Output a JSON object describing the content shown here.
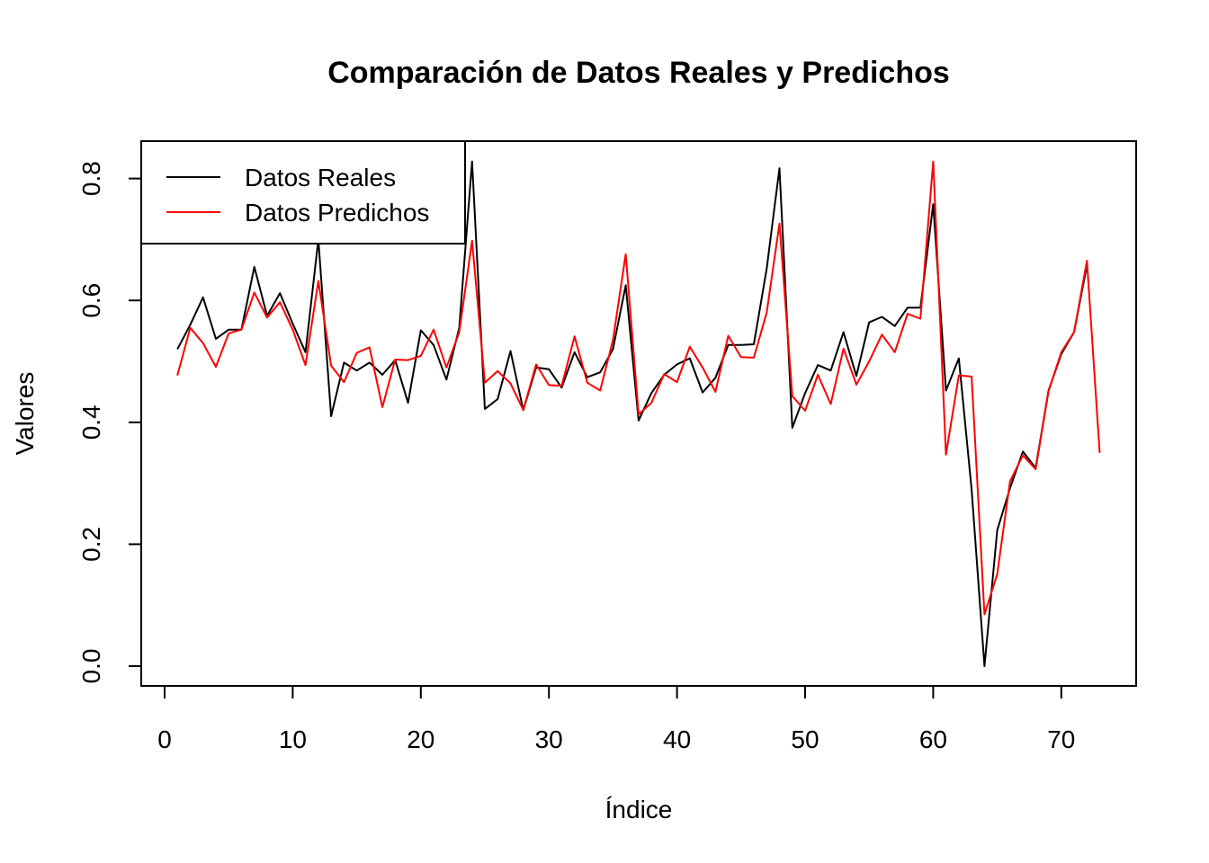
{
  "chart_data": {
    "type": "line",
    "title": "Comparación de Datos Reales y Predichos",
    "xlabel": "Índice",
    "ylabel": "Valores",
    "xlim": [
      0,
      75
    ],
    "ylim": [
      0.0,
      0.83
    ],
    "x_ticks": [
      0,
      10,
      20,
      30,
      40,
      50,
      60,
      70
    ],
    "x_tick_labels": [
      "0",
      "10",
      "20",
      "30",
      "40",
      "50",
      "60",
      "70"
    ],
    "y_ticks": [
      0.0,
      0.2,
      0.4,
      0.6,
      0.8
    ],
    "y_tick_labels": [
      "0.0",
      "0.2",
      "0.4",
      "0.6",
      "0.8"
    ],
    "grid": false,
    "legend_position": "top-left",
    "series": [
      {
        "name": "Datos Reales",
        "color": "#000000",
        "x": [
          1,
          2,
          3,
          4,
          5,
          6,
          7,
          8,
          9,
          10,
          11,
          12,
          13,
          14,
          15,
          16,
          17,
          18,
          19,
          20,
          21,
          22,
          23,
          24,
          25,
          26,
          27,
          28,
          29,
          30,
          31,
          32,
          33,
          34,
          35,
          36,
          37,
          38,
          39,
          40,
          41,
          42,
          43,
          44,
          45,
          46,
          47,
          48,
          49,
          50,
          51,
          52,
          53,
          54,
          55,
          56,
          57,
          58,
          59,
          60,
          61,
          62,
          63,
          64,
          65,
          66,
          67,
          68,
          69,
          70,
          71,
          72
        ],
        "y": [
          0.52,
          0.56,
          0.605,
          0.537,
          0.552,
          0.552,
          0.655,
          0.575,
          0.612,
          0.562,
          0.515,
          0.7,
          0.41,
          0.498,
          0.485,
          0.498,
          0.478,
          0.502,
          0.432,
          0.551,
          0.527,
          0.47,
          0.555,
          0.828,
          0.422,
          0.438,
          0.517,
          0.42,
          0.49,
          0.487,
          0.457,
          0.515,
          0.474,
          0.482,
          0.52,
          0.625,
          0.403,
          0.448,
          0.478,
          0.495,
          0.505,
          0.449,
          0.473,
          0.527,
          0.527,
          0.528,
          0.652,
          0.817,
          0.391,
          0.448,
          0.494,
          0.485,
          0.548,
          0.476,
          0.564,
          0.573,
          0.558,
          0.588,
          0.588,
          0.758,
          0.452,
          0.505,
          0.29,
          0.0,
          0.223,
          0.292,
          0.352,
          0.325,
          0.452,
          0.512,
          0.548,
          0.658
        ]
      },
      {
        "name": "Datos Predichos",
        "color": "#ff0000",
        "x": [
          1,
          2,
          3,
          4,
          5,
          6,
          7,
          8,
          9,
          10,
          11,
          12,
          13,
          14,
          15,
          16,
          17,
          18,
          19,
          20,
          21,
          22,
          23,
          24,
          25,
          26,
          27,
          28,
          29,
          30,
          31,
          32,
          33,
          34,
          35,
          36,
          37,
          38,
          39,
          40,
          41,
          42,
          43,
          44,
          45,
          46,
          47,
          48,
          49,
          50,
          51,
          52,
          53,
          54,
          55,
          56,
          57,
          58,
          59,
          60,
          61,
          62,
          63,
          64,
          65,
          66,
          67,
          68,
          69,
          70,
          71,
          72,
          73
        ],
        "y": [
          0.477,
          0.555,
          0.53,
          0.491,
          0.546,
          0.552,
          0.613,
          0.572,
          0.597,
          0.552,
          0.494,
          0.632,
          0.493,
          0.466,
          0.514,
          0.523,
          0.425,
          0.503,
          0.502,
          0.509,
          0.552,
          0.49,
          0.548,
          0.698,
          0.465,
          0.484,
          0.464,
          0.42,
          0.495,
          0.461,
          0.46,
          0.541,
          0.465,
          0.452,
          0.535,
          0.676,
          0.413,
          0.432,
          0.479,
          0.466,
          0.524,
          0.49,
          0.45,
          0.542,
          0.507,
          0.506,
          0.58,
          0.726,
          0.443,
          0.419,
          0.478,
          0.43,
          0.521,
          0.462,
          0.5,
          0.544,
          0.515,
          0.578,
          0.57,
          0.828,
          0.347,
          0.477,
          0.475,
          0.085,
          0.151,
          0.303,
          0.346,
          0.323,
          0.451,
          0.515,
          0.548,
          0.665,
          0.35
        ]
      }
    ]
  }
}
